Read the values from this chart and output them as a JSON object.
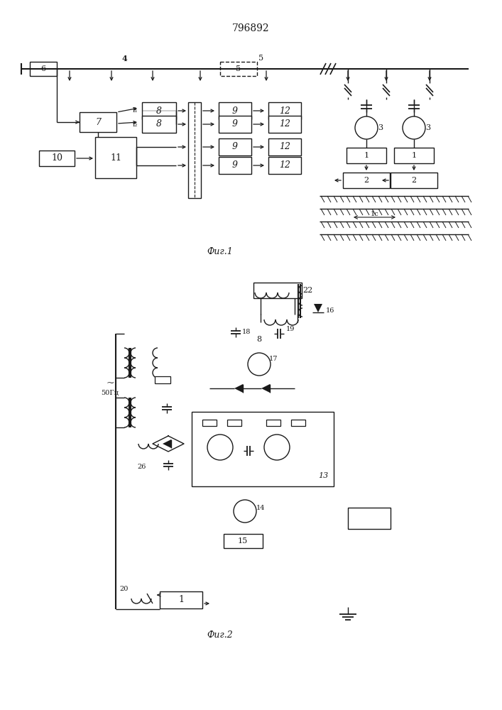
{
  "title": "796892",
  "fig1_label": "Фиг.1",
  "fig2_label": "Фиг.2",
  "lc": "#1a1a1a"
}
